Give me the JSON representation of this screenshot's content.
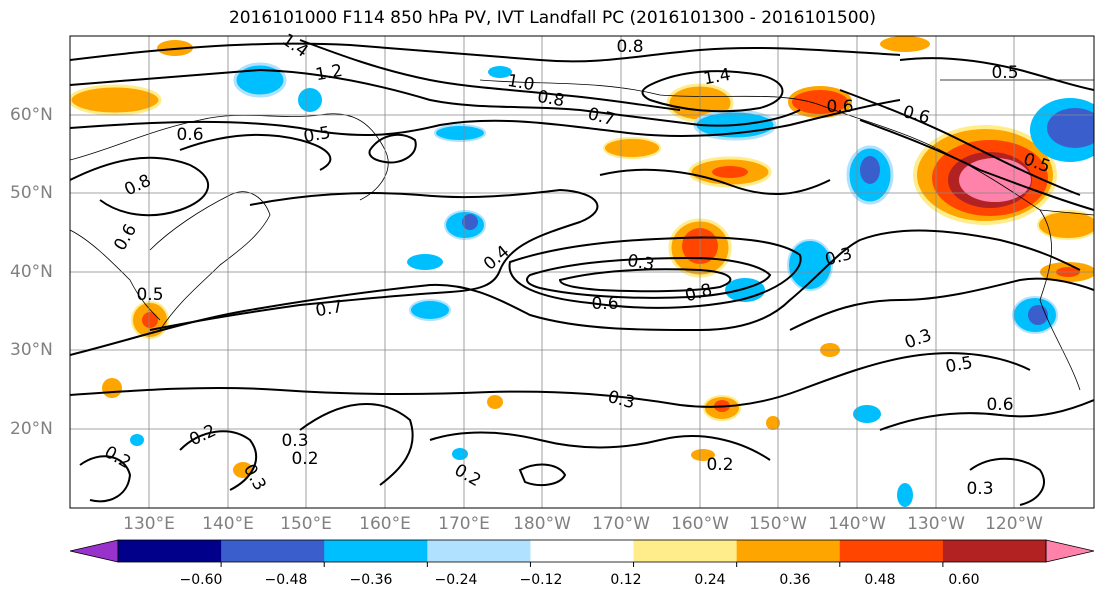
{
  "title": "2016101000 F114 850 hPa PV, IVT Landfall PC (2016101300 - 2016101500)",
  "lat_labels": [
    "60°N",
    "50°N",
    "40°N",
    "30°N",
    "20°N"
  ],
  "lon_labels": [
    "130°E",
    "140°E",
    "150°E",
    "160°E",
    "170°E",
    "180°W",
    "170°W",
    "160°W",
    "150°W",
    "140°W",
    "130°W",
    "120°W"
  ],
  "contour_labels": [
    "1.4",
    "1.2",
    "0.8",
    "1.0",
    "0.8",
    "1.4",
    "0.5",
    "0.6",
    "0.5",
    "0.7",
    "0.6",
    "0.6",
    "0.5",
    "0.8",
    "0.6",
    "0.5",
    "0.4",
    "0.7",
    "0.3",
    "0.8",
    "0.6",
    "0.3",
    "0.3",
    "0.5",
    "0.6",
    "0.2",
    "0.3",
    "0.2",
    "0.3",
    "0.2",
    "0.2",
    "0.3",
    "0.3",
    "0.2"
  ],
  "colorbar": {
    "colors": [
      "#9932CC",
      "#00008B",
      "#3A5FCD",
      "#00BFFF",
      "#B0E2FF",
      "#FFFFFF",
      "#FFEC8B",
      "#FFA500",
      "#FF4500",
      "#B22222",
      "#FF82AB"
    ],
    "ticks": [
      "−0.60",
      "−0.48",
      "−0.36",
      "−0.24",
      "−0.12",
      "0.12",
      "0.24",
      "0.36",
      "0.48",
      "0.60"
    ]
  }
}
